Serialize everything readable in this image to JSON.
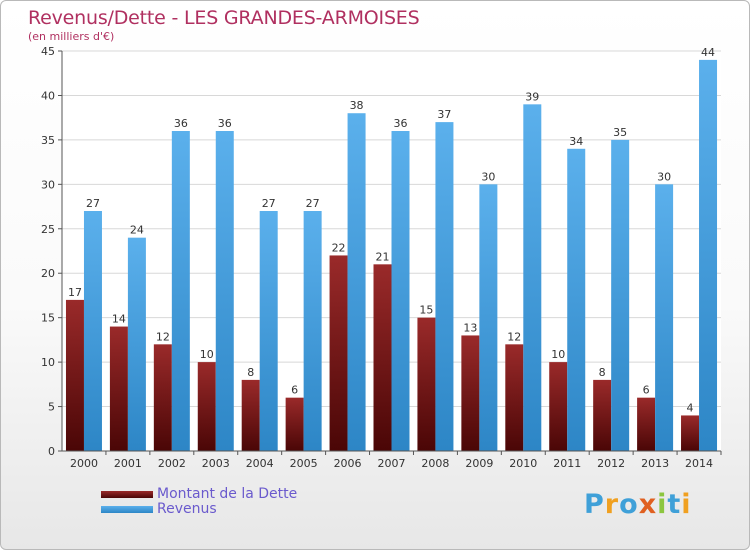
{
  "chart_data": {
    "type": "bar",
    "title": "Revenus/Dette - LES GRANDES-ARMOISES",
    "subtitle": "(en milliers d'€)",
    "categories": [
      "2000",
      "2001",
      "2002",
      "2003",
      "2004",
      "2005",
      "2006",
      "2007",
      "2008",
      "2009",
      "2010",
      "2011",
      "2012",
      "2013",
      "2014"
    ],
    "series": [
      {
        "name": "Montant de la Dette",
        "values": [
          17,
          14,
          12,
          10,
          8,
          6,
          22,
          21,
          15,
          13,
          12,
          10,
          8,
          6,
          4
        ],
        "color": "#7a1a1a"
      },
      {
        "name": "Revenus",
        "values": [
          27,
          24,
          36,
          36,
          27,
          27,
          38,
          36,
          37,
          30,
          39,
          34,
          35,
          30,
          44
        ],
        "color": "#4aa3e0"
      }
    ],
    "ylim": [
      0,
      45
    ],
    "yticks": [
      0,
      5,
      10,
      15,
      20,
      25,
      30,
      35,
      40,
      45
    ],
    "grid": true,
    "legend": "bottom-left"
  },
  "logo": {
    "letters": [
      "P",
      "r",
      "o",
      "x",
      "i",
      "t",
      "i"
    ]
  }
}
